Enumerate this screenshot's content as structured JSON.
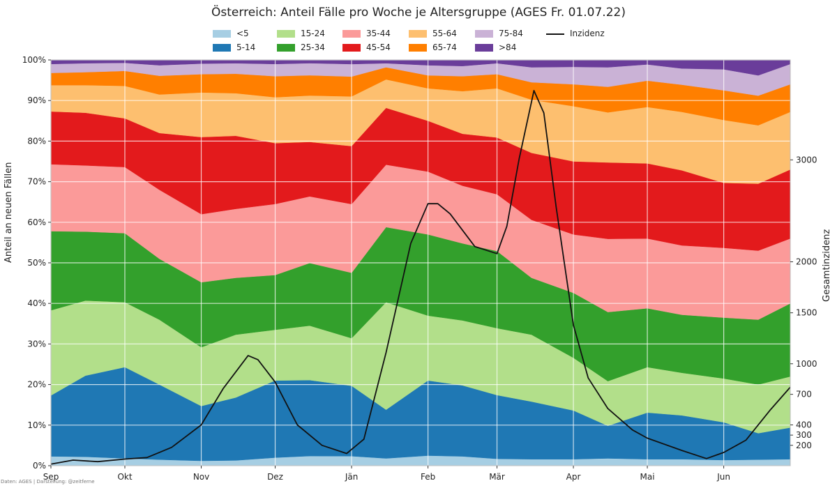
{
  "chart_data": {
    "type": "area",
    "stacked": true,
    "normalized_percent": true,
    "title": "Österreich: Anteil Fälle pro Woche je Altersgruppe (AGES Fr. 01.07.22)",
    "source_note": "Daten: AGES | Darstellung: @zeitferne",
    "ylabel": "Anteil an neuen Fällen",
    "y2label": "Gesamtinzidenz",
    "ylim": [
      0,
      100
    ],
    "y2lim": [
      0,
      3980
    ],
    "yticks": [
      "0%",
      "10%",
      "20%",
      "30%",
      "40%",
      "50%",
      "60%",
      "70%",
      "80%",
      "90%",
      "100%"
    ],
    "y2ticks": [
      200,
      300,
      400,
      700,
      1000,
      1500,
      2000,
      3000
    ],
    "xticks": [
      "Sep",
      "Okt",
      "Nov",
      "Dez",
      "Jän",
      "Feb",
      "Mär",
      "Apr",
      "Mai",
      "Jun"
    ],
    "x_dates": [
      "2021-09-01",
      "2021-09-15",
      "2021-10-01",
      "2021-10-15",
      "2021-11-01",
      "2021-11-15",
      "2021-12-01",
      "2021-12-15",
      "2022-01-01",
      "2022-01-15",
      "2022-02-01",
      "2022-02-15",
      "2022-03-01",
      "2022-03-15",
      "2022-04-01",
      "2022-04-15",
      "2022-05-01",
      "2022-05-15",
      "2022-06-01",
      "2022-06-15",
      "2022-06-28"
    ],
    "grid": true,
    "legend_position": "top-center",
    "series": [
      {
        "name": "<5",
        "color": "#a6cee3",
        "values": [
          2.3,
          2.2,
          1.8,
          1.5,
          1.2,
          1.3,
          2.0,
          2.4,
          2.3,
          1.8,
          2.5,
          2.3,
          1.7,
          1.6,
          1.6,
          1.8,
          1.6,
          1.6,
          1.4,
          1.5,
          1.6
        ]
      },
      {
        "name": "5-14",
        "color": "#1f78b4",
        "values": [
          15.0,
          20.0,
          22.5,
          18.5,
          13.5,
          15.5,
          19.0,
          18.8,
          17.0,
          12.0,
          18.5,
          17.5,
          15.7,
          14.2,
          12.0,
          8.0,
          11.5,
          10.8,
          9.3,
          6.5,
          7.8
        ]
      },
      {
        "name": "15-24",
        "color": "#b2df8a",
        "values": [
          21.0,
          18.5,
          16.0,
          16.0,
          14.5,
          15.5,
          12.5,
          13.5,
          11.5,
          26.5,
          16.0,
          16.0,
          16.5,
          16.5,
          13.0,
          11.0,
          11.2,
          10.5,
          10.8,
          12.0,
          12.6
        ]
      },
      {
        "name": "25-34",
        "color": "#33a02c",
        "values": [
          19.5,
          17.0,
          17.0,
          15.0,
          16.0,
          14.0,
          13.5,
          15.5,
          15.8,
          18.5,
          20.0,
          19.0,
          19.0,
          14.0,
          16.0,
          17.0,
          14.5,
          14.3,
          15.0,
          16.0,
          18.0
        ]
      },
      {
        "name": "35-44",
        "color": "#fb9a99",
        "values": [
          16.5,
          16.3,
          16.3,
          17.0,
          16.8,
          17.0,
          17.5,
          16.5,
          16.6,
          15.4,
          15.5,
          14.2,
          14.0,
          14.3,
          14.4,
          18.0,
          17.2,
          17.1,
          17.2,
          17.0,
          16.0
        ]
      },
      {
        "name": "45-54",
        "color": "#e31a1c",
        "values": [
          13.0,
          13.0,
          12.0,
          14.0,
          19.0,
          18.0,
          15.0,
          13.5,
          14.0,
          14.0,
          12.5,
          12.8,
          14.0,
          16.5,
          18.0,
          18.8,
          18.5,
          18.5,
          16.0,
          16.5,
          17.0
        ]
      },
      {
        "name": "55-64",
        "color": "#fdbf6f",
        "values": [
          6.5,
          6.8,
          8.0,
          9.5,
          11.0,
          10.5,
          11.3,
          11.5,
          12.0,
          7.0,
          8.0,
          10.5,
          12.1,
          13.1,
          13.6,
          12.3,
          13.9,
          14.4,
          15.5,
          14.4,
          14.2
        ]
      },
      {
        "name": "65-74",
        "color": "#ff7f00",
        "values": [
          3.0,
          3.2,
          3.7,
          4.6,
          4.5,
          4.8,
          5.2,
          5.0,
          4.8,
          3.0,
          3.2,
          3.7,
          3.5,
          4.3,
          5.4,
          6.3,
          6.5,
          6.7,
          7.3,
          7.3,
          6.8
        ]
      },
      {
        "name": "75-84",
        "color": "#cab2d6",
        "values": [
          2.2,
          2.2,
          2.0,
          2.6,
          2.6,
          2.6,
          3.0,
          3.0,
          3.0,
          1.0,
          2.5,
          2.5,
          2.7,
          3.7,
          4.3,
          4.8,
          4.0,
          4.0,
          5.2,
          5.0,
          5.0
        ]
      },
      {
        "name": ">84",
        "color": "#6a3d9a",
        "values": [
          1.0,
          0.8,
          0.7,
          1.3,
          0.9,
          0.8,
          1.0,
          0.8,
          1.0,
          0.8,
          1.3,
          1.5,
          0.8,
          1.8,
          1.7,
          1.8,
          1.1,
          2.1,
          2.3,
          3.8,
          1.0
        ]
      }
    ],
    "line": {
      "name": "Inzidenz",
      "color": "#111111",
      "x_dates": [
        "2021-09-01",
        "2021-09-10",
        "2021-09-20",
        "2021-10-01",
        "2021-10-10",
        "2021-10-20",
        "2021-11-01",
        "2021-11-10",
        "2021-11-20",
        "2021-11-24",
        "2021-12-01",
        "2021-12-10",
        "2021-12-20",
        "2021-12-30",
        "2022-01-06",
        "2022-01-15",
        "2022-01-25",
        "2022-02-01",
        "2022-02-05",
        "2022-02-10",
        "2022-02-20",
        "2022-03-01",
        "2022-03-05",
        "2022-03-10",
        "2022-03-16",
        "2022-03-20",
        "2022-03-25",
        "2022-04-01",
        "2022-04-07",
        "2022-04-15",
        "2022-04-25",
        "2022-05-01",
        "2022-05-15",
        "2022-05-25",
        "2022-06-01",
        "2022-06-10",
        "2022-06-20",
        "2022-06-28"
      ],
      "values": [
        15,
        55,
        40,
        65,
        80,
        180,
        400,
        760,
        1080,
        1040,
        820,
        400,
        200,
        120,
        260,
        1110,
        2180,
        2570,
        2570,
        2470,
        2150,
        2080,
        2350,
        3010,
        3680,
        3460,
        2540,
        1380,
        860,
        560,
        350,
        270,
        150,
        70,
        130,
        250,
        550,
        770
      ]
    }
  },
  "legend": [
    {
      "label": "<5",
      "color": "#a6cee3"
    },
    {
      "label": "5-14",
      "color": "#1f78b4"
    },
    {
      "label": "15-24",
      "color": "#b2df8a"
    },
    {
      "label": "25-34",
      "color": "#33a02c"
    },
    {
      "label": "35-44",
      "color": "#fb9a99"
    },
    {
      "label": "45-54",
      "color": "#e31a1c"
    },
    {
      "label": "55-64",
      "color": "#fdbf6f"
    },
    {
      "label": "65-74",
      "color": "#ff7f00"
    },
    {
      "label": "75-84",
      "color": "#cab2d6"
    },
    {
      "label": ">84",
      "color": "#6a3d9a"
    },
    {
      "label": "Inzidenz",
      "color": "#111111"
    }
  ]
}
